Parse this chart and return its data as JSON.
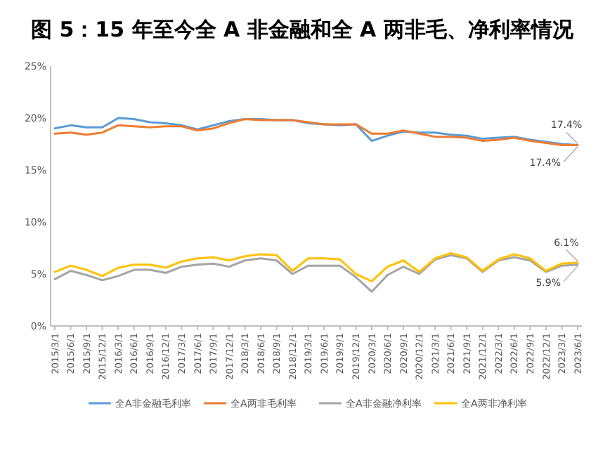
{
  "chart_data": {
    "type": "line",
    "title": "图 5：15 年至今全 A 非金融和全 A 两非毛、净利率情况",
    "categories": [
      "2015/3/1",
      "2015/6/1",
      "2015/9/1",
      "2015/12/1",
      "2016/3/1",
      "2016/6/1",
      "2016/9/1",
      "2016/12/1",
      "2017/3/1",
      "2017/6/1",
      "2017/9/1",
      "2017/12/1",
      "2018/3/1",
      "2018/6/1",
      "2018/9/1",
      "2018/12/1",
      "2019/3/1",
      "2019/6/1",
      "2019/9/1",
      "2019/12/1",
      "2020/3/1",
      "2020/6/1",
      "2020/9/1",
      "2020/12/1",
      "2021/3/1",
      "2021/6/1",
      "2021/9/1",
      "2021/12/1",
      "2022/3/1",
      "2022/6/1",
      "2022/9/1",
      "2022/12/1",
      "2023/3/1",
      "2023/6/1"
    ],
    "series": [
      {
        "name": "全A非金融毛利率",
        "color": "#5b9bd5",
        "values": [
          19.0,
          19.3,
          19.1,
          19.1,
          20.0,
          19.9,
          19.6,
          19.5,
          19.3,
          18.9,
          19.3,
          19.7,
          19.9,
          19.9,
          19.8,
          19.8,
          19.5,
          19.4,
          19.3,
          19.4,
          17.8,
          18.3,
          18.7,
          18.6,
          18.6,
          18.4,
          18.3,
          18.0,
          18.1,
          18.2,
          17.9,
          17.7,
          17.5,
          17.4
        ],
        "value_labels": [
          null,
          null,
          null,
          null,
          null,
          null,
          null,
          null,
          null,
          null,
          null,
          null,
          null,
          null,
          null,
          null,
          null,
          null,
          null,
          null,
          null,
          null,
          null,
          null,
          null,
          null,
          null,
          null,
          null,
          null,
          null,
          null,
          null,
          "17.4%"
        ]
      },
      {
        "name": "全A两非毛利率",
        "color": "#ed7d31",
        "values": [
          18.5,
          18.6,
          18.4,
          18.6,
          19.3,
          19.2,
          19.1,
          19.2,
          19.2,
          18.8,
          19.0,
          19.5,
          19.9,
          19.8,
          19.8,
          19.8,
          19.6,
          19.4,
          19.4,
          19.4,
          18.5,
          18.5,
          18.8,
          18.5,
          18.2,
          18.2,
          18.1,
          17.8,
          17.9,
          18.1,
          17.8,
          17.6,
          17.4,
          17.4
        ],
        "value_labels": [
          null,
          null,
          null,
          null,
          null,
          null,
          null,
          null,
          null,
          null,
          null,
          null,
          null,
          null,
          null,
          null,
          null,
          null,
          null,
          null,
          null,
          null,
          null,
          null,
          null,
          null,
          null,
          null,
          null,
          null,
          null,
          null,
          null,
          "17.4%"
        ]
      },
      {
        "name": "全A非金融净利率",
        "color": "#a5a5a5",
        "values": [
          4.5,
          5.3,
          4.9,
          4.4,
          4.8,
          5.4,
          5.4,
          5.1,
          5.7,
          5.9,
          6.0,
          5.7,
          6.3,
          6.5,
          6.3,
          5.0,
          5.8,
          5.8,
          5.8,
          4.7,
          3.3,
          4.9,
          5.7,
          5.0,
          6.4,
          6.8,
          6.5,
          5.2,
          6.3,
          6.6,
          6.3,
          5.2,
          5.8,
          5.9
        ],
        "value_labels": [
          null,
          null,
          null,
          null,
          null,
          null,
          null,
          null,
          null,
          null,
          null,
          null,
          null,
          null,
          null,
          null,
          null,
          null,
          null,
          null,
          null,
          null,
          null,
          null,
          null,
          null,
          null,
          null,
          null,
          null,
          null,
          null,
          null,
          "5.9%"
        ]
      },
      {
        "name": "全A两非净利率",
        "color": "#ffc000",
        "values": [
          5.2,
          5.8,
          5.4,
          4.8,
          5.6,
          5.9,
          5.9,
          5.6,
          6.2,
          6.5,
          6.6,
          6.3,
          6.7,
          6.9,
          6.8,
          5.3,
          6.5,
          6.5,
          6.4,
          5.0,
          4.3,
          5.7,
          6.3,
          5.2,
          6.5,
          7.0,
          6.6,
          5.3,
          6.4,
          6.9,
          6.5,
          5.3,
          6.0,
          6.1
        ],
        "value_labels": [
          null,
          null,
          null,
          null,
          null,
          null,
          null,
          null,
          null,
          null,
          null,
          null,
          null,
          null,
          null,
          null,
          null,
          null,
          null,
          null,
          null,
          null,
          null,
          null,
          null,
          null,
          null,
          null,
          null,
          null,
          null,
          null,
          null,
          "6.1%"
        ]
      }
    ],
    "ylim": [
      0,
      25
    ],
    "yticks": [
      {
        "value": 0,
        "label": "0%"
      },
      {
        "value": 5,
        "label": "5%"
      },
      {
        "value": 10,
        "label": "10%"
      },
      {
        "value": 15,
        "label": "15%"
      },
      {
        "value": 20,
        "label": "20%"
      },
      {
        "value": 25,
        "label": "25%"
      }
    ],
    "legend": "bottom",
    "grid": false,
    "marker": "none",
    "line_style": "solid"
  }
}
